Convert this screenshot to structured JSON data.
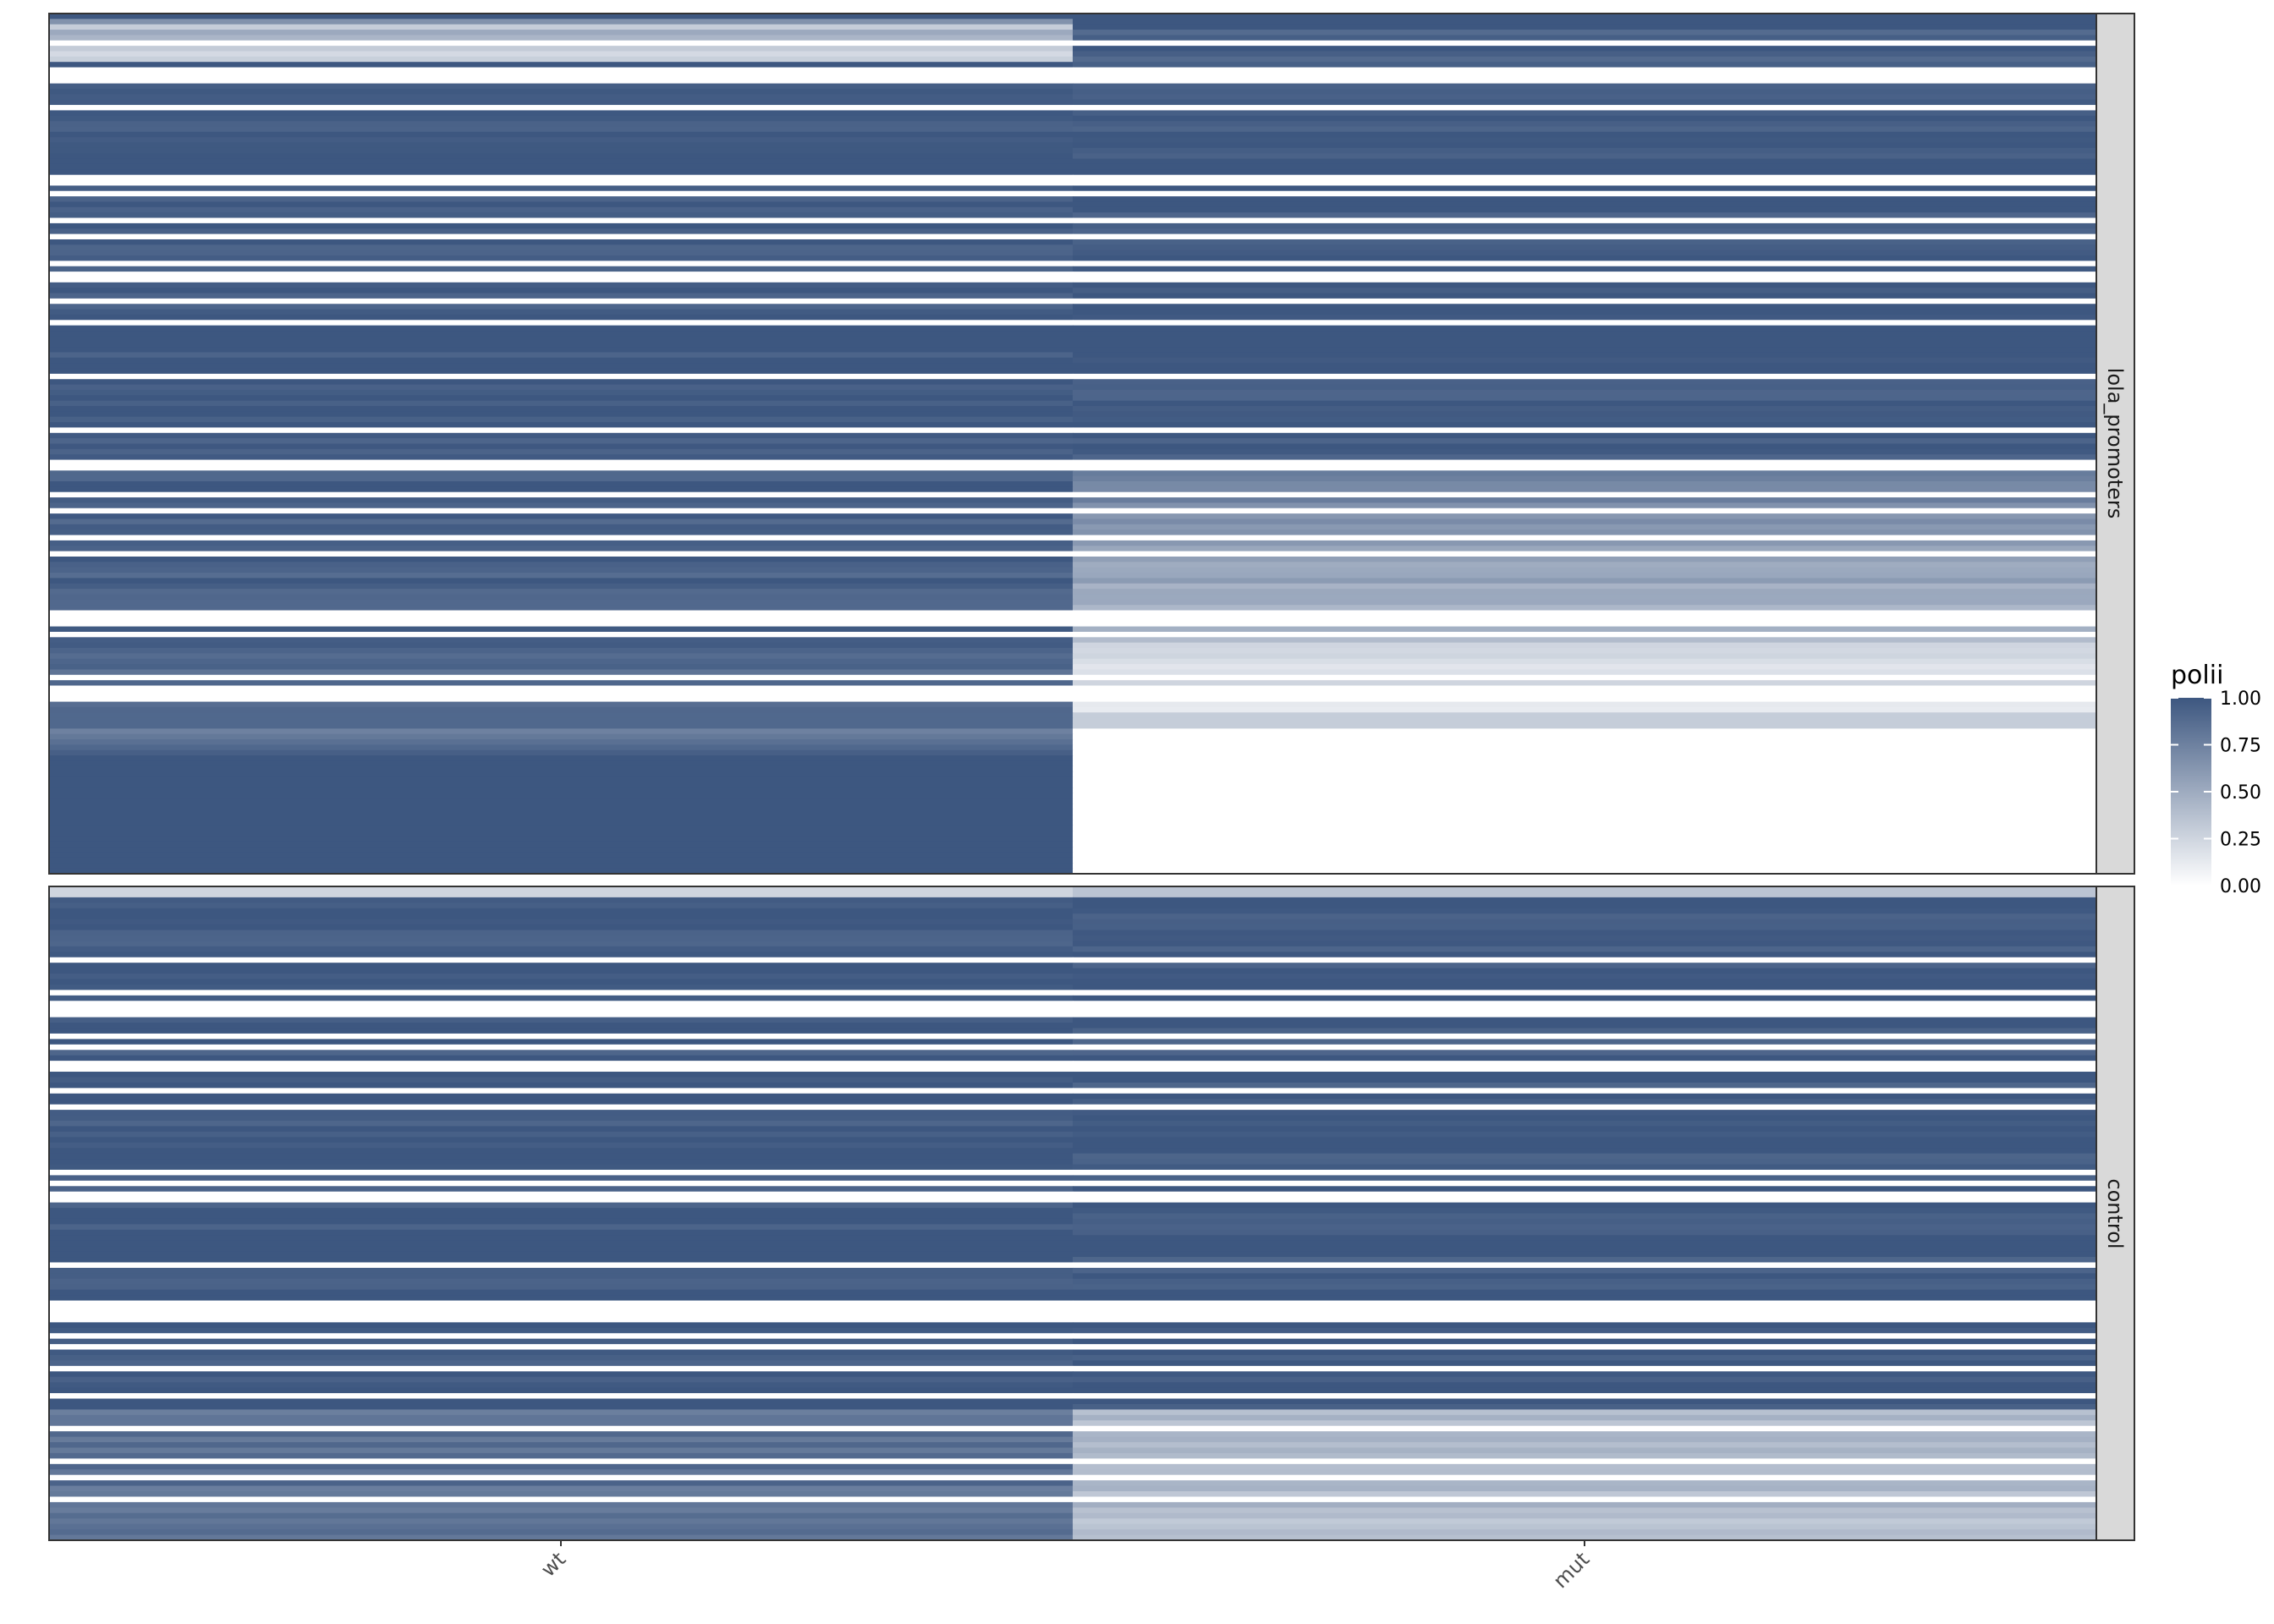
{
  "chart_data": {
    "type": "heatmap",
    "x_categories": [
      "wt",
      "mut"
    ],
    "colors": {
      "high": "#3d5780",
      "low": "#ffffff"
    },
    "legend": {
      "title": "polii",
      "ticks": [
        "1.00",
        "0.75",
        "0.50",
        "0.25",
        "0.00"
      ],
      "tick_values": [
        1.0,
        0.75,
        0.5,
        0.25,
        0.0
      ],
      "placement": "right"
    },
    "facets": [
      {
        "label": "lola_promoters",
        "row_count": 160,
        "segments": [
          {
            "rows": 3,
            "wt": [
              1.0,
              0.3
            ],
            "mut": [
              1.0,
              1.0
            ],
            "striped": false
          },
          {
            "rows": 6,
            "wt": [
              0.5,
              0.25
            ],
            "mut": [
              0.95,
              0.95
            ],
            "striped": true
          },
          {
            "rows": 75,
            "wt": [
              1.0,
              1.0
            ],
            "mut": [
              1.0,
              1.0
            ],
            "striped": true
          },
          {
            "rows": 26,
            "wt": [
              0.95,
              0.95
            ],
            "mut": [
              0.75,
              0.5
            ],
            "striped": true
          },
          {
            "rows": 20,
            "wt": [
              0.9,
              0.9
            ],
            "mut": [
              0.5,
              0.05
            ],
            "striped": true
          },
          {
            "rows": 3,
            "wt": [
              0.9,
              0.9
            ],
            "mut": [
              0.3,
              0.3
            ],
            "striped": false
          },
          {
            "rows": 5,
            "wt": [
              0.75,
              0.95
            ],
            "mut": [
              0.0,
              0.0
            ],
            "striped": false
          },
          {
            "rows": 22,
            "wt": [
              1.0,
              1.0
            ],
            "mut": [
              0.0,
              0.0
            ],
            "striped": false
          }
        ]
      },
      {
        "label": "control",
        "row_count": 120,
        "segments": [
          {
            "rows": 2,
            "wt": [
              0.25,
              0.25
            ],
            "mut": [
              0.35,
              0.35
            ],
            "striped": false
          },
          {
            "rows": 94,
            "wt": [
              1.0,
              1.0
            ],
            "mut": [
              1.0,
              1.0
            ],
            "striped": true
          },
          {
            "rows": 24,
            "wt": [
              0.85,
              0.85
            ],
            "mut": [
              0.4,
              0.4
            ],
            "striped": true
          }
        ]
      }
    ]
  }
}
